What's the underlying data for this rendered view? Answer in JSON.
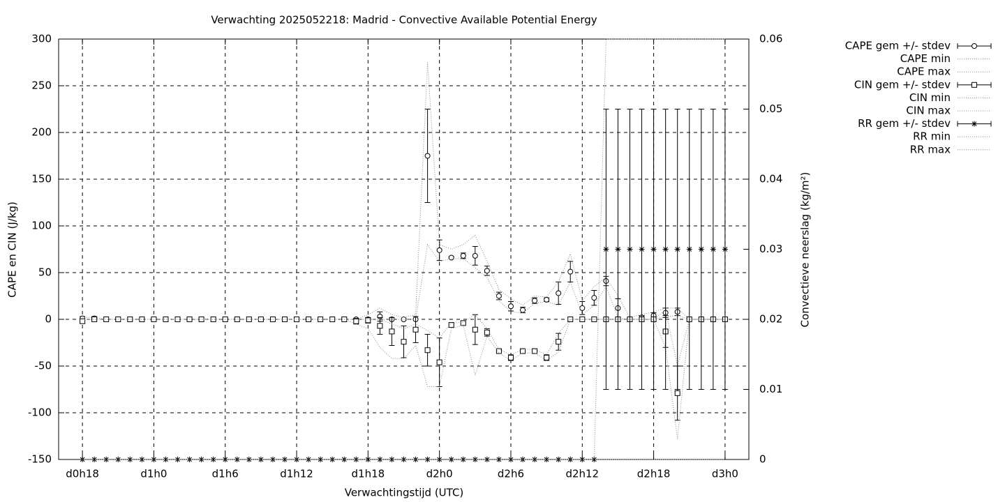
{
  "chart_data": {
    "type": "errorbar",
    "title": "Verwachting 2025052218: Madrid - Convective Available Potential Energy",
    "xlabel": "Verwachtingstijd (UTC)",
    "ylabel": "CAPE en CIN (J/kg)",
    "y2label": "Convectieve neerslag (kg/m²)",
    "grid": true,
    "legend": "outside-right-top",
    "xlim": [
      16,
      74
    ],
    "xticks": [
      {
        "value": 18,
        "label": "d0h18"
      },
      {
        "value": 24,
        "label": "d1h0"
      },
      {
        "value": 30,
        "label": "d1h6"
      },
      {
        "value": 36,
        "label": "d1h12"
      },
      {
        "value": 42,
        "label": "d1h18"
      },
      {
        "value": 48,
        "label": "d2h0"
      },
      {
        "value": 54,
        "label": "d2h6"
      },
      {
        "value": 60,
        "label": "d2h12"
      },
      {
        "value": 66,
        "label": "d2h18"
      },
      {
        "value": 72,
        "label": "d3h0"
      }
    ],
    "ylim": [
      -150,
      300
    ],
    "yticks": [
      -150,
      -100,
      -50,
      0,
      50,
      100,
      150,
      200,
      250,
      300
    ],
    "y2lim": [
      0,
      0.06
    ],
    "y2ticks": [
      0,
      0.01,
      0.02,
      0.03,
      0.04,
      0.05,
      0.06
    ],
    "x": [
      18,
      19,
      20,
      21,
      22,
      23,
      24,
      25,
      26,
      27,
      28,
      29,
      30,
      31,
      32,
      33,
      34,
      35,
      36,
      37,
      38,
      39,
      40,
      41,
      42,
      43,
      44,
      45,
      46,
      47,
      48,
      49,
      50,
      51,
      52,
      53,
      54,
      55,
      56,
      57,
      58,
      59,
      60,
      61,
      62,
      63,
      64,
      65,
      66,
      67,
      68,
      69,
      70,
      71,
      72
    ],
    "series": [
      {
        "name": "CAPE gem +/- stdev",
        "kind": "errorbars",
        "marker": "circle",
        "color": "#000000",
        "values": [
          1,
          1,
          0,
          0,
          0,
          0,
          0,
          0,
          0,
          0,
          0,
          0,
          0,
          0,
          0,
          0,
          0,
          0,
          0,
          0,
          0,
          0,
          0,
          0,
          0,
          3,
          0,
          0,
          0,
          175,
          74,
          66,
          68,
          68,
          52,
          25,
          14,
          10,
          20,
          21,
          28,
          51,
          12,
          23,
          41,
          12,
          0,
          2,
          4,
          7,
          8,
          0,
          0,
          0,
          0
        ],
        "errors": [
          2,
          2,
          0,
          0,
          0,
          0,
          0,
          0,
          0,
          0,
          0,
          0,
          0,
          0,
          0,
          0,
          0,
          0,
          0,
          0,
          0,
          0,
          0,
          0,
          0,
          5,
          0,
          0,
          0,
          50,
          11,
          1,
          3,
          10,
          5,
          4,
          5,
          3,
          3,
          2,
          12,
          11,
          7,
          8,
          5,
          10,
          0,
          2,
          3,
          5,
          4,
          0,
          0,
          0,
          0
        ]
      },
      {
        "name": "CAPE min",
        "kind": "line",
        "color": "#888888",
        "values": [
          0,
          0,
          0,
          0,
          0,
          0,
          0,
          0,
          0,
          0,
          0,
          0,
          0,
          0,
          0,
          0,
          0,
          0,
          0,
          0,
          0,
          0,
          0,
          0,
          0,
          0,
          0,
          0,
          0,
          80,
          62,
          65,
          65,
          55,
          45,
          20,
          8,
          7,
          17,
          19,
          15,
          40,
          5,
          15,
          35,
          2,
          0,
          0,
          0,
          3,
          4,
          0,
          0,
          0,
          0
        ]
      },
      {
        "name": "CAPE max",
        "kind": "line",
        "color": "#888888",
        "values": [
          2,
          2,
          0,
          0,
          0,
          0,
          0,
          0,
          0,
          0,
          0,
          0,
          0,
          0,
          0,
          0,
          0,
          0,
          0,
          0,
          0,
          0,
          0,
          0,
          5,
          12,
          5,
          2,
          5,
          275,
          80,
          75,
          80,
          90,
          62,
          32,
          22,
          15,
          25,
          24,
          40,
          70,
          20,
          35,
          45,
          25,
          2,
          5,
          8,
          12,
          12,
          0,
          0,
          0,
          0
        ]
      },
      {
        "name": "CIN gem +/- stdev",
        "kind": "errorbars",
        "marker": "square",
        "color": "#000000",
        "values": [
          -2,
          0,
          0,
          0,
          0,
          0,
          0,
          0,
          0,
          0,
          0,
          0,
          0,
          0,
          0,
          0,
          0,
          0,
          0,
          0,
          0,
          0,
          0,
          -2,
          -1,
          -7,
          -13,
          -24,
          -11,
          -33,
          -46,
          -6,
          -4,
          -11,
          -14,
          -34,
          -41,
          -34,
          -34,
          -41,
          -24,
          0,
          0,
          0,
          0,
          0,
          0,
          0,
          0,
          -13,
          -79,
          0,
          0,
          0,
          0
        ],
        "errors": [
          2,
          0,
          0,
          0,
          0,
          0,
          0,
          0,
          0,
          0,
          0,
          0,
          0,
          0,
          0,
          0,
          0,
          0,
          0,
          0,
          0,
          0,
          0,
          3,
          3,
          9,
          15,
          17,
          14,
          17,
          26,
          1,
          1,
          16,
          4,
          1,
          3,
          1,
          1,
          3,
          9,
          0,
          0,
          0,
          0,
          0,
          0,
          0,
          0,
          17,
          29,
          0,
          0,
          0,
          0
        ]
      },
      {
        "name": "CIN min",
        "kind": "line",
        "color": "#888888",
        "values": [
          0,
          0,
          0,
          0,
          0,
          0,
          0,
          0,
          0,
          0,
          0,
          0,
          0,
          0,
          0,
          0,
          0,
          0,
          0,
          0,
          0,
          0,
          0,
          -5,
          -10,
          -30,
          -42,
          -42,
          -28,
          -72,
          -72,
          -10,
          -6,
          -60,
          -18,
          -36,
          -44,
          -36,
          -36,
          -44,
          -35,
          0,
          0,
          0,
          0,
          0,
          0,
          0,
          0,
          -30,
          -128,
          0,
          0,
          0,
          0
        ]
      },
      {
        "name": "CIN max",
        "kind": "line",
        "color": "#888888",
        "values": [
          0,
          0,
          0,
          0,
          0,
          0,
          0,
          0,
          0,
          0,
          0,
          0,
          0,
          0,
          0,
          0,
          0,
          0,
          0,
          0,
          0,
          0,
          0,
          0,
          0,
          0,
          -5,
          -10,
          -5,
          -12,
          -20,
          -4,
          -3,
          5,
          -10,
          -32,
          -38,
          -32,
          -32,
          -38,
          -15,
          0,
          0,
          0,
          0,
          0,
          0,
          0,
          0,
          10,
          -50,
          0,
          0,
          0,
          0
        ]
      },
      {
        "name": "RR gem +/- stdev",
        "kind": "errorbars",
        "marker": "star",
        "axis": "y2",
        "color": "#000000",
        "values": [
          0,
          0,
          0,
          0,
          0,
          0,
          0,
          0,
          0,
          0,
          0,
          0,
          0,
          0,
          0,
          0,
          0,
          0,
          0,
          0,
          0,
          0,
          0,
          0,
          0,
          0,
          0,
          0,
          0,
          0,
          0,
          0,
          0,
          0,
          0,
          0,
          0,
          0,
          0,
          0,
          0,
          0,
          0,
          0,
          0.03,
          0.03,
          0.03,
          0.03,
          0.03,
          0.03,
          0.03,
          0.03,
          0.03,
          0.03,
          0.03
        ],
        "errors": [
          0,
          0,
          0,
          0,
          0,
          0,
          0,
          0,
          0,
          0,
          0,
          0,
          0,
          0,
          0,
          0,
          0,
          0,
          0,
          0,
          0,
          0,
          0,
          0,
          0,
          0,
          0,
          0,
          0,
          0,
          0,
          0,
          0,
          0,
          0,
          0,
          0,
          0,
          0,
          0,
          0,
          0,
          0,
          0,
          0.02,
          0.02,
          0.02,
          0.02,
          0.02,
          0.02,
          0.02,
          0.02,
          0.02,
          0.02,
          0.02
        ]
      },
      {
        "name": "RR min",
        "kind": "line",
        "axis": "y2",
        "color": "#888888",
        "values": [
          0,
          0,
          0,
          0,
          0,
          0,
          0,
          0,
          0,
          0,
          0,
          0,
          0,
          0,
          0,
          0,
          0,
          0,
          0,
          0,
          0,
          0,
          0,
          0,
          0,
          0,
          0,
          0,
          0,
          0,
          0,
          0,
          0,
          0,
          0,
          0,
          0,
          0,
          0,
          0,
          0,
          0,
          0,
          0,
          0,
          0,
          0,
          0,
          0,
          0,
          0,
          0,
          0,
          0,
          0
        ]
      },
      {
        "name": "RR max",
        "kind": "line",
        "axis": "y2",
        "color": "#888888",
        "values": [
          0,
          0,
          0,
          0,
          0,
          0,
          0,
          0,
          0,
          0,
          0,
          0,
          0,
          0,
          0,
          0,
          0,
          0,
          0,
          0,
          0,
          0,
          0,
          0,
          0,
          0,
          0,
          0,
          0,
          0,
          0,
          0,
          0,
          0,
          0,
          0,
          0,
          0,
          0,
          0,
          0,
          0,
          0,
          0,
          0.06,
          0.06,
          0.06,
          0.06,
          0.06,
          0.06,
          0.06,
          0.06,
          0.06,
          0.06,
          0.06
        ]
      }
    ]
  }
}
